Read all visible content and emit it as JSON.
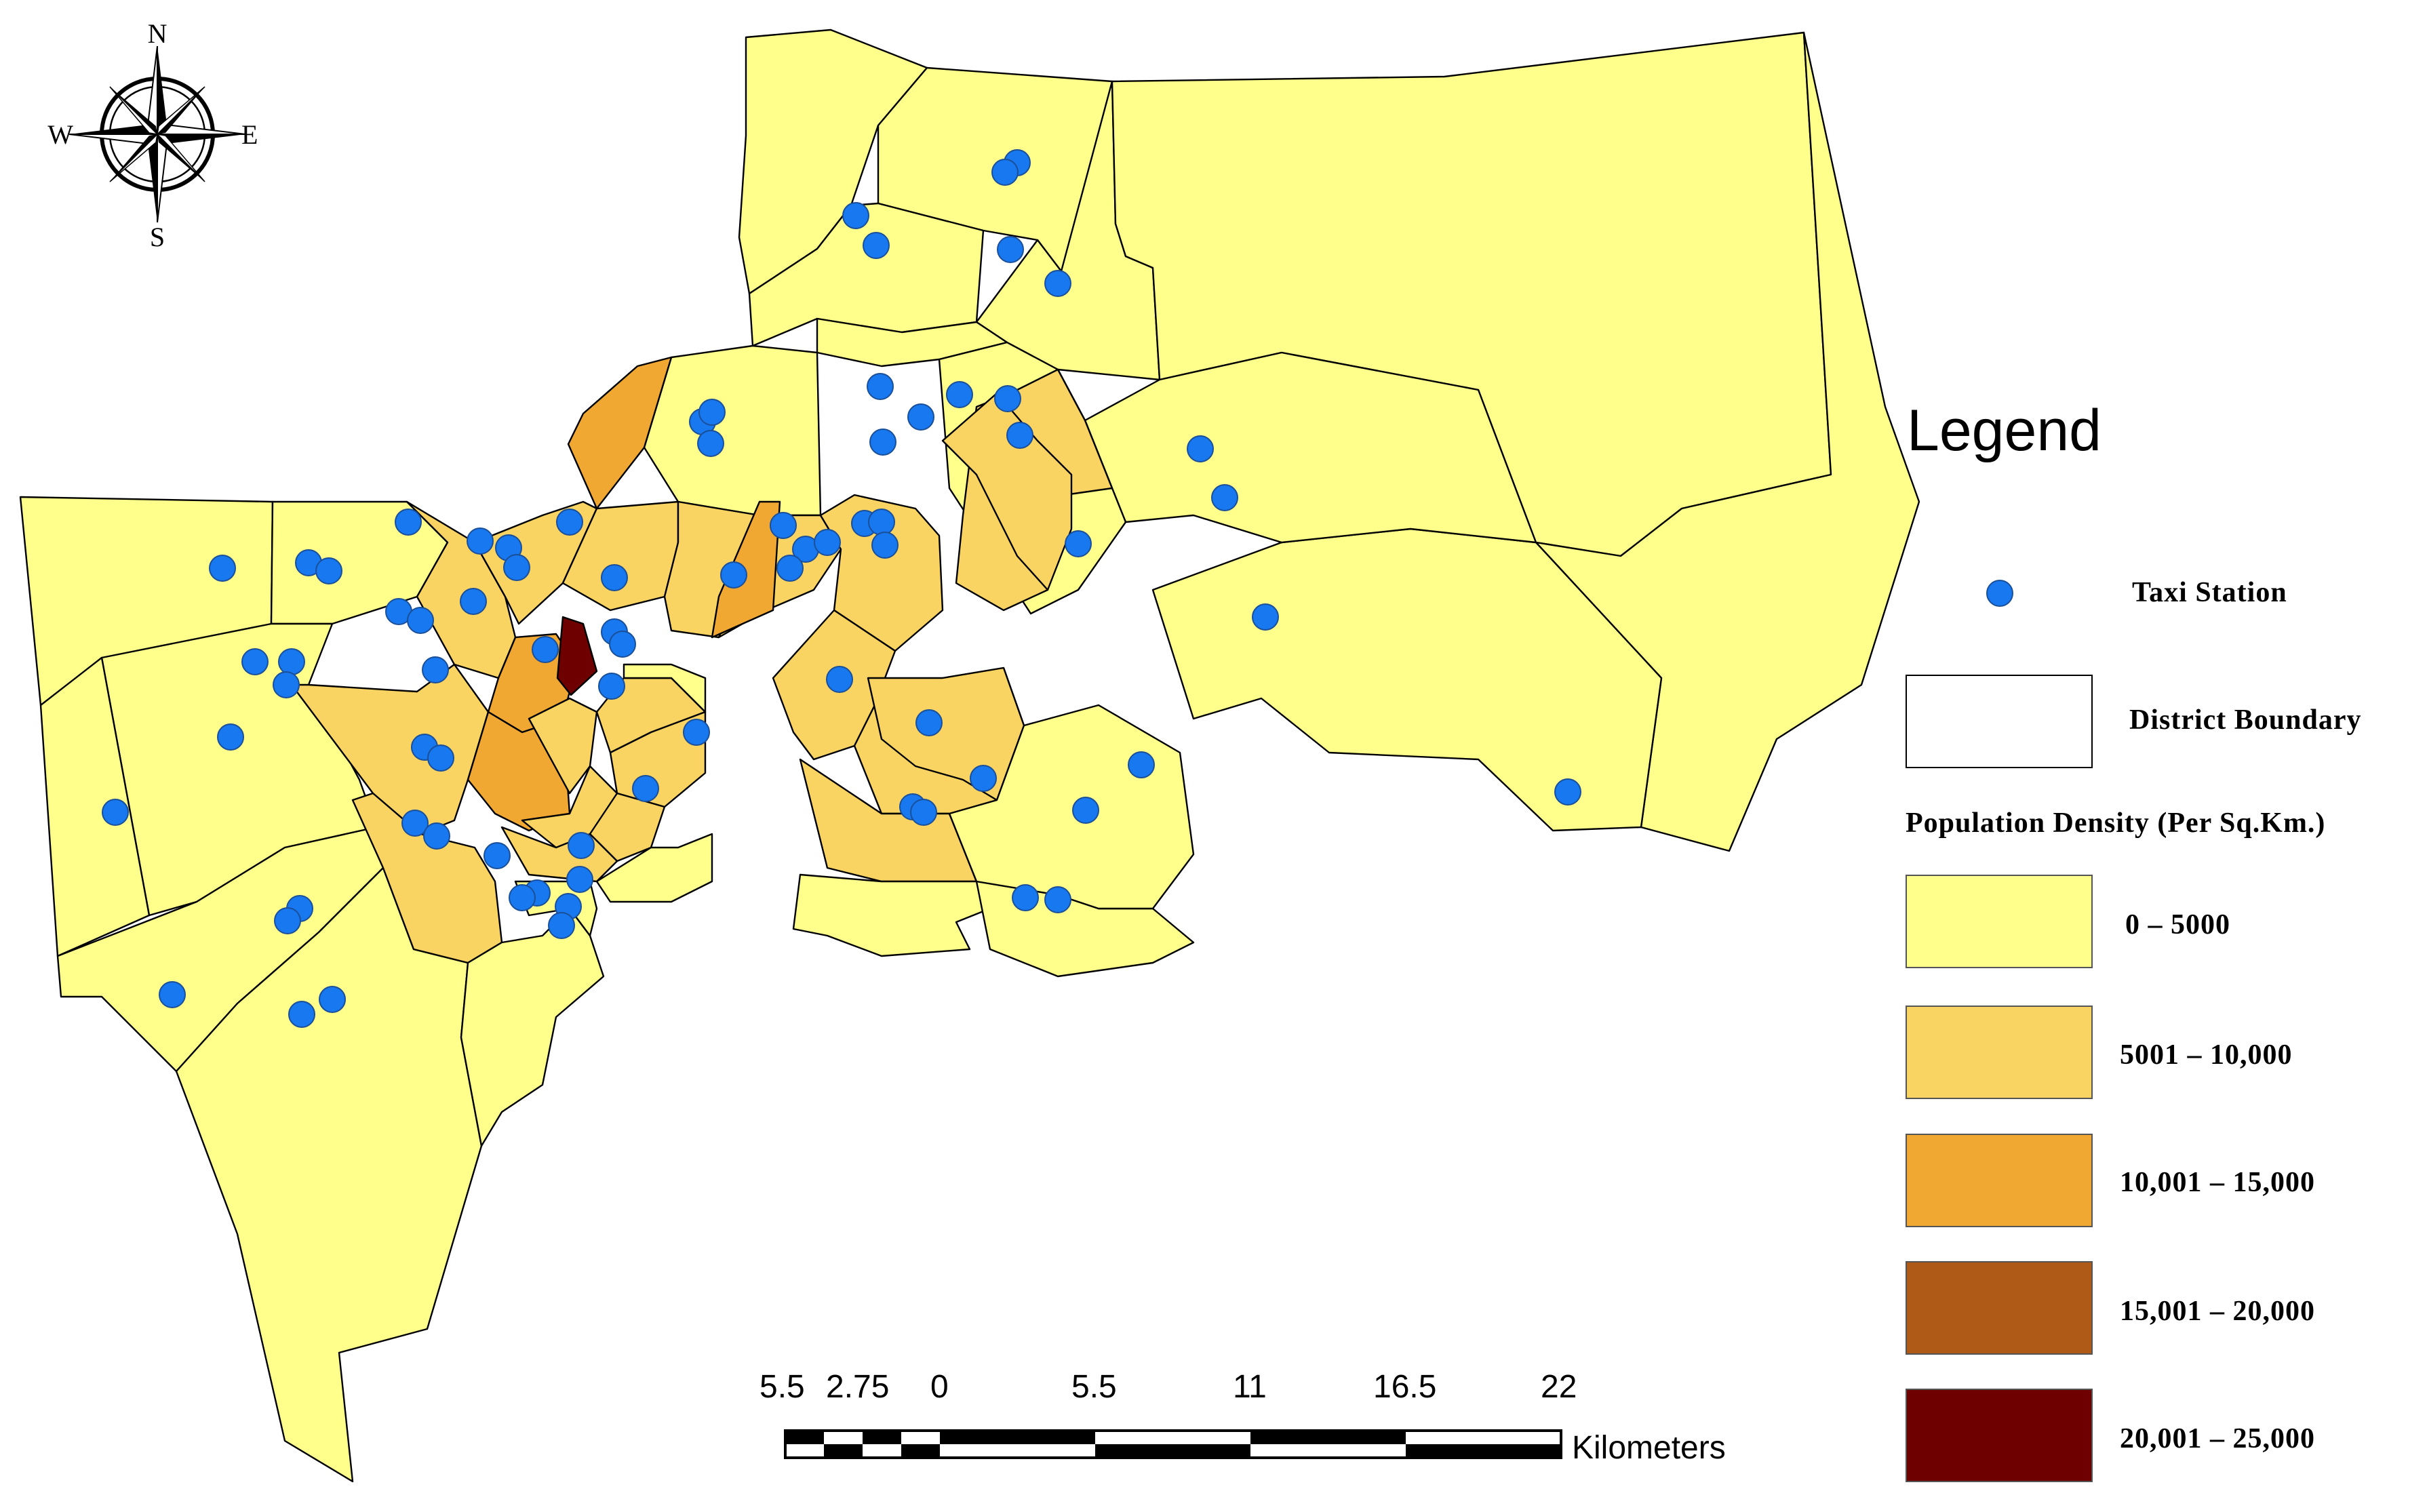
{
  "legend": {
    "title": "Legend",
    "taxi_station_label": "Taxi Station",
    "district_boundary_label": "District Boundary",
    "population_density_title": "Population Density (Per Sq.Km.)",
    "classes": [
      {
        "label": "0 – 5000",
        "color": "#FFFF8C"
      },
      {
        "label": "5001 – 10,000",
        "color": "#F9D462"
      },
      {
        "label": "10,001 – 15,000",
        "color": "#F0A832"
      },
      {
        "label": "15,001 – 20,000",
        "color": "#B05A18"
      },
      {
        "label": "20,001 – 25,000",
        "color": "#6E0000"
      }
    ],
    "station_color": "#1778F0"
  },
  "scale_bar": {
    "ticks": [
      "5.5",
      "2.75",
      "0",
      "5.5",
      "11",
      "16.5",
      "22"
    ],
    "unit": "Kilometers"
  },
  "compass": {
    "north": "N",
    "south": "S",
    "east": "E",
    "west": "W"
  },
  "district_density_classes": [
    0,
    0,
    0,
    0,
    0,
    0,
    0,
    0,
    0,
    0,
    0,
    0,
    0,
    0,
    0,
    0,
    0,
    2,
    1,
    1,
    2,
    1,
    1,
    1,
    1,
    2,
    1,
    1,
    1,
    1,
    1,
    1,
    1,
    4,
    2,
    1,
    1,
    1,
    1,
    1,
    1,
    1,
    1,
    0,
    0,
    0,
    0,
    0,
    0,
    0
  ],
  "taxi_station_count": 88
}
